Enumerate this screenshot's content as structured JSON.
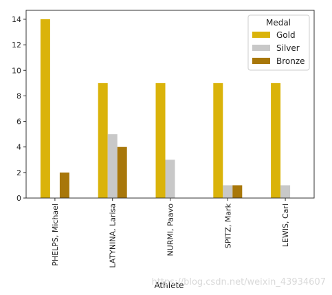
{
  "chart_data": {
    "type": "bar",
    "categories": [
      "PHELPS, Michael",
      "LATYNINA, Larisa",
      "NURMI, Paavo",
      "SPITZ, Mark",
      "LEWIS, Carl"
    ],
    "series": [
      {
        "name": "Gold",
        "color": "#DAB30A",
        "values": [
          14,
          9,
          9,
          9,
          9
        ]
      },
      {
        "name": "Silver",
        "color": "#C8C8C8",
        "values": [
          0,
          5,
          3,
          1,
          1
        ]
      },
      {
        "name": "Bronze",
        "color": "#A8770A",
        "values": [
          2,
          4,
          0,
          1,
          0
        ]
      }
    ],
    "title": "",
    "xlabel": "Athlete",
    "ylabel": "",
    "ylim": [
      0,
      14.7
    ],
    "yticks": [
      0,
      2,
      4,
      6,
      8,
      10,
      12,
      14
    ],
    "legend": {
      "title": "Medal",
      "position": "top-right"
    },
    "grid": false
  },
  "watermark": "https://blog.csdn.net/weixin_43934607"
}
